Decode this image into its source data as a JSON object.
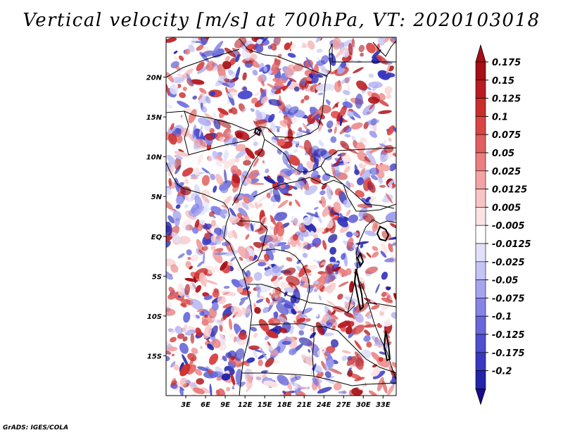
{
  "title": "Vertical velocity [m/s] at 700hPa, VT: 2020103018",
  "credit": "GrADS: IGES/COLA",
  "map": {
    "lon_range": [
      0,
      35
    ],
    "lat_range": [
      -20,
      25
    ],
    "lon_ticks": [
      {
        "value": 3,
        "label": "3E"
      },
      {
        "value": 6,
        "label": "6E"
      },
      {
        "value": 9,
        "label": "9E"
      },
      {
        "value": 12,
        "label": "12E"
      },
      {
        "value": 15,
        "label": "15E"
      },
      {
        "value": 18,
        "label": "18E"
      },
      {
        "value": 21,
        "label": "21E"
      },
      {
        "value": 24,
        "label": "24E"
      },
      {
        "value": 27,
        "label": "27E"
      },
      {
        "value": 30,
        "label": "30E"
      },
      {
        "value": 33,
        "label": "33E"
      }
    ],
    "lat_ticks": [
      {
        "value": 20,
        "label": "20N"
      },
      {
        "value": 15,
        "label": "15N"
      },
      {
        "value": 10,
        "label": "10N"
      },
      {
        "value": 5,
        "label": "5N"
      },
      {
        "value": 0,
        "label": "EQ"
      },
      {
        "value": -5,
        "label": "5S"
      },
      {
        "value": -10,
        "label": "10S"
      },
      {
        "value": -15,
        "label": "15S"
      }
    ]
  },
  "colorbar": {
    "levels": [
      {
        "label": "0.175",
        "color": "#a50f15"
      },
      {
        "label": "0.15",
        "color": "#b81c22"
      },
      {
        "label": "0.125",
        "color": "#cb2d2d"
      },
      {
        "label": "0.1",
        "color": "#d94545"
      },
      {
        "label": "0.075",
        "color": "#e25f5f"
      },
      {
        "label": "0.05",
        "color": "#eb7e7e"
      },
      {
        "label": "0.025",
        "color": "#f3a3a3"
      },
      {
        "label": "0.0125",
        "color": "#f8c4c4"
      },
      {
        "label": "0.005",
        "color": "#fce2e2"
      },
      {
        "label": "-0.005",
        "color": "#ffffff"
      },
      {
        "label": "-0.0125",
        "color": "#e0e0fa"
      },
      {
        "label": "-0.025",
        "color": "#c4c4f5"
      },
      {
        "label": "-0.05",
        "color": "#a5a5ef"
      },
      {
        "label": "-0.075",
        "color": "#8585e6"
      },
      {
        "label": "-0.1",
        "color": "#6868dc"
      },
      {
        "label": "-0.125",
        "color": "#4f4fcf"
      },
      {
        "label": "-0.175",
        "color": "#3838c0"
      },
      {
        "label": "-0.2",
        "color": "#2424ab"
      }
    ],
    "top_triangle_color": "#a50f15",
    "bottom_triangle_color": "#1a0a8c"
  }
}
